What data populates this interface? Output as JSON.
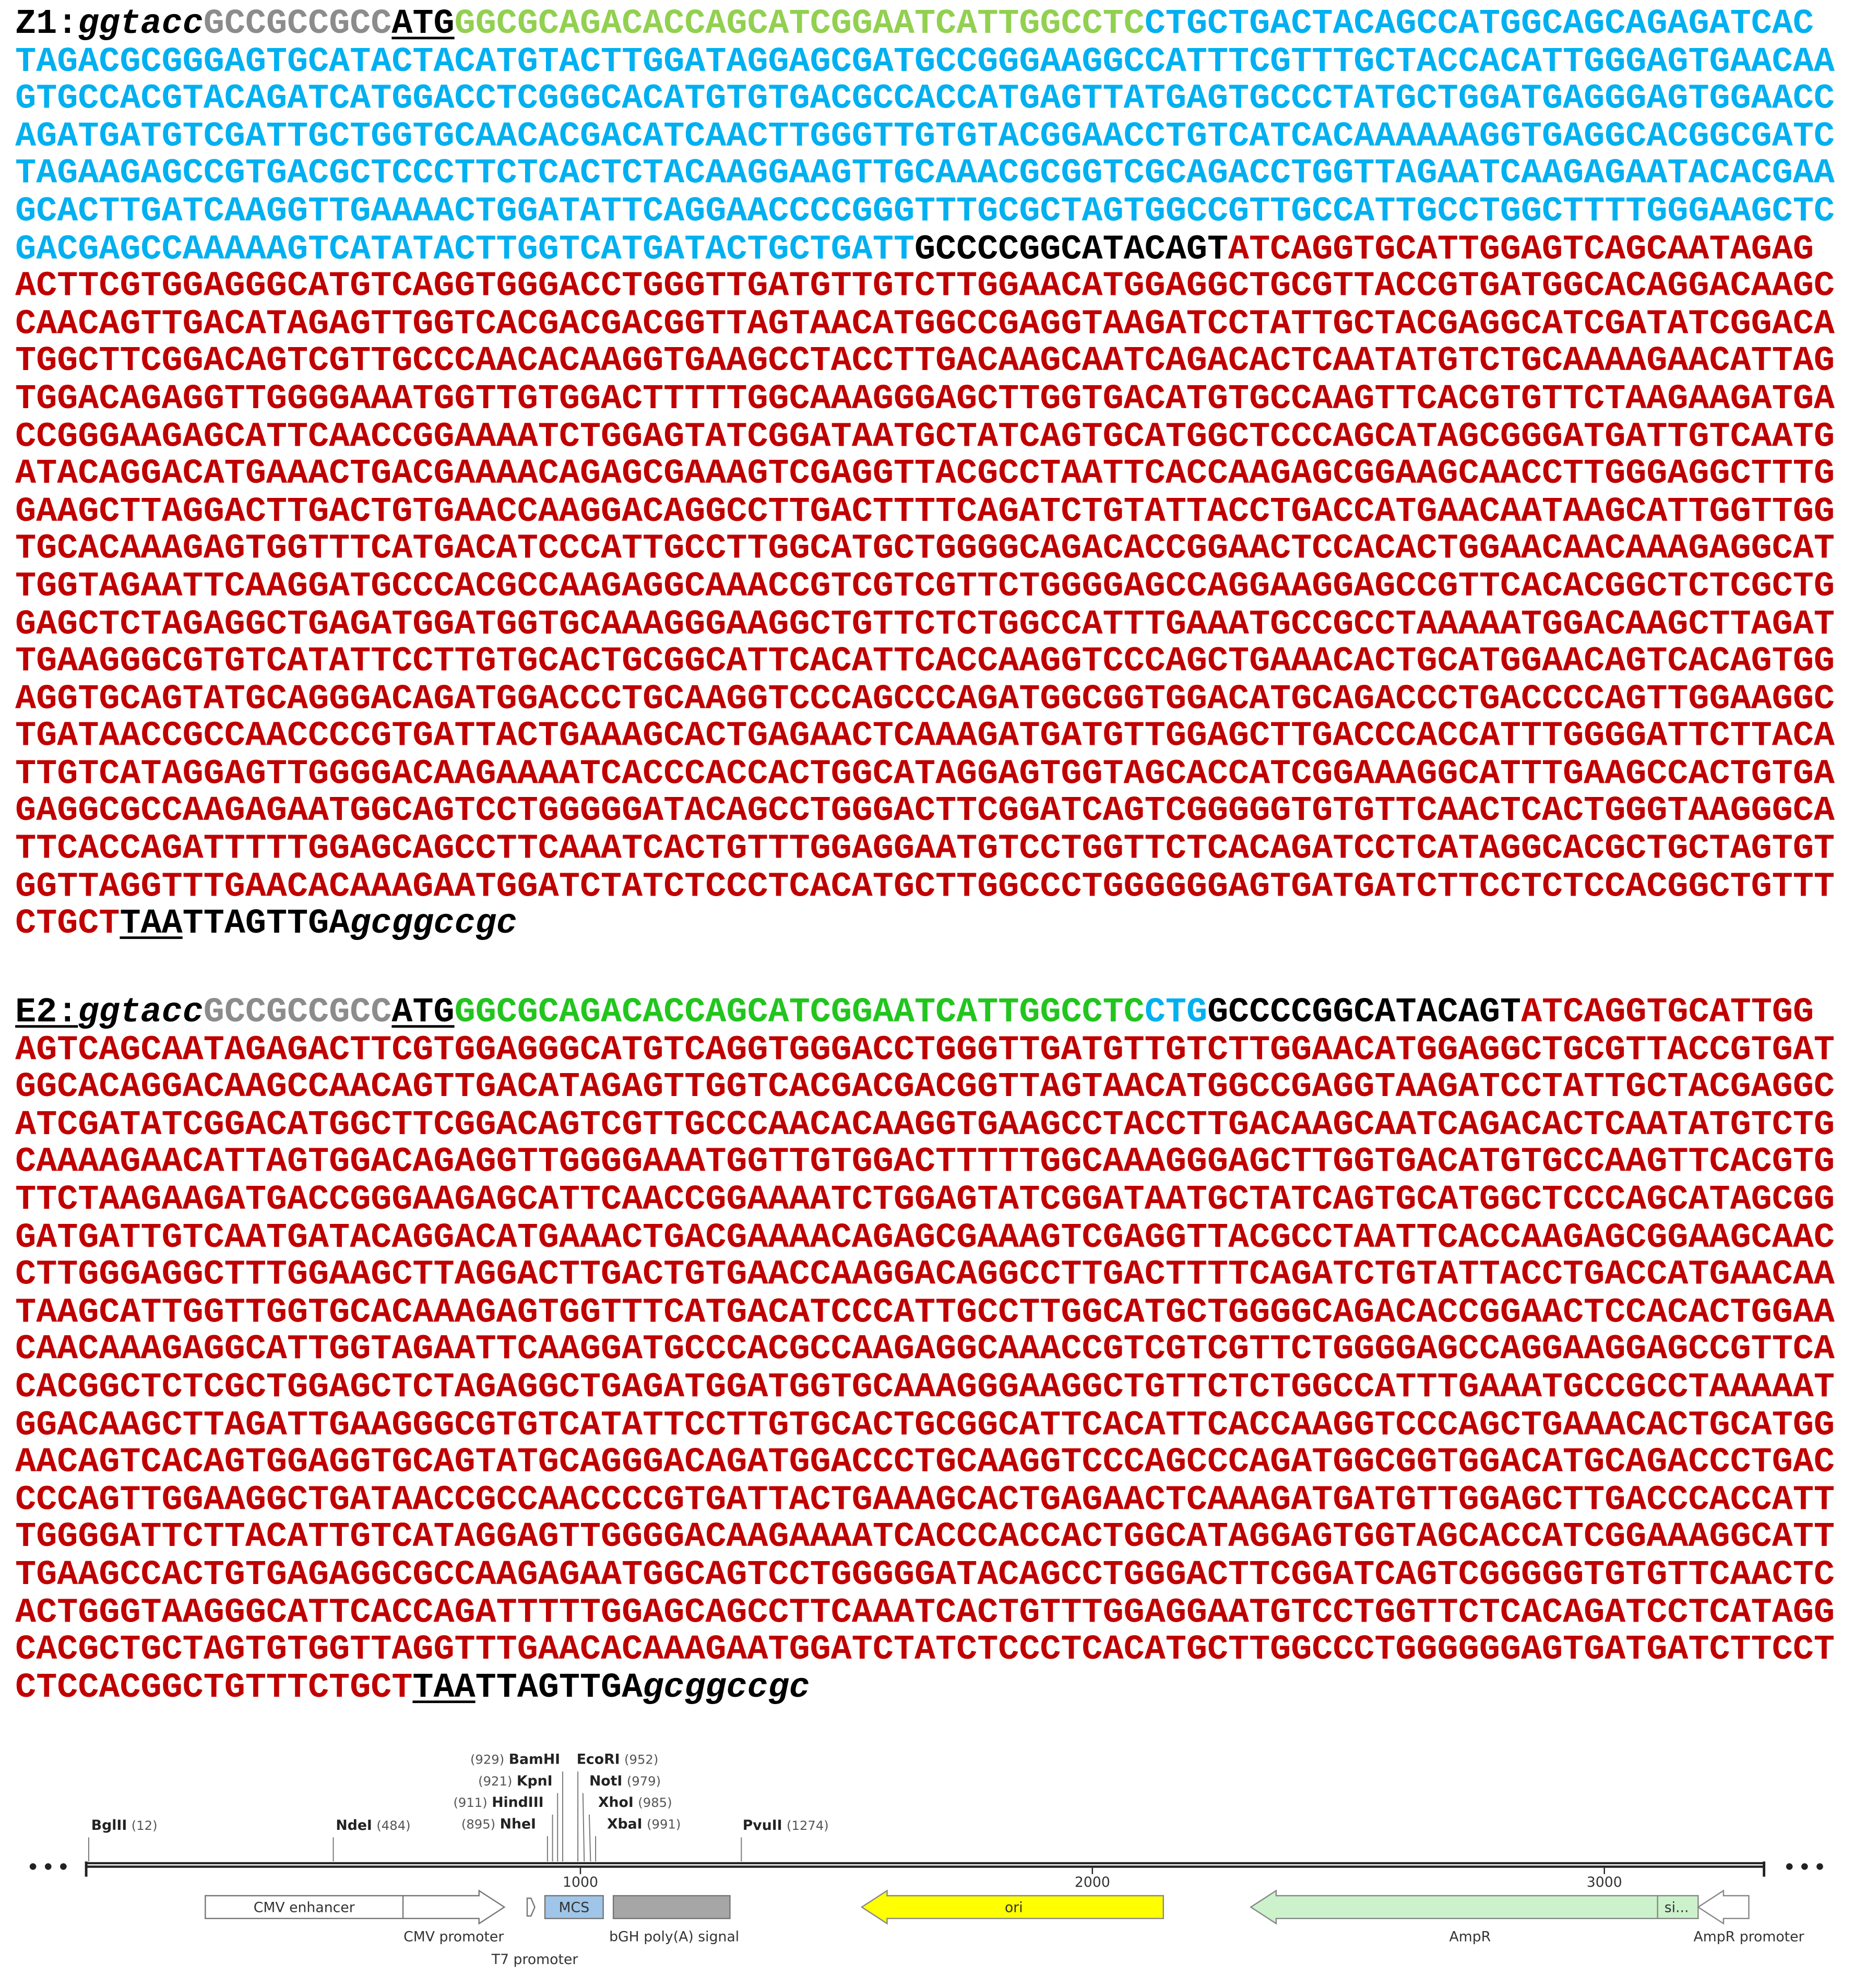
{
  "blocks": [
    {
      "label": "Z1:",
      "label_underline": false,
      "segments": [
        {
          "text": "ggtacc",
          "color": "#000000",
          "italic": true
        },
        {
          "text": "GCCGCCGCC",
          "color": "#8c8c8c"
        },
        {
          "text": "ATG",
          "color": "#000000",
          "underline": true
        },
        {
          "text": "GGCGCAGACACCAGCATCGGAATCATTGGCCTC",
          "color": "#92d050"
        },
        {
          "text": "CTGCTGACTACAGCCATGGCAGCAGAGATCACTAGACGCGGGAGTGCATACTACATGTACTTGGATAGGAGCGATGCCGGGAAGGCCATTTCGTTTGCTACCACATTGGGAGTGAACAAGTGCCACGTACAGATCATGGACCTCGGGCACATGTGTGACGCCACCATGAGTTATGAGTGCCCTATGCTGGATGAGGGAGTGGAACCAGATGATGTCGATTGCTGGTGCAACACGACATCAACTTGGGTTGTGTACGGAACCTGTCATCACAAAAAAGGTGAGGCACGGCGATCTAGAAGAGCCGTGACGCTCCCTTCTCACTCTACAAGGAAGTTGCAAACGCGGTCGCAGACCTGGTTAGAATCAAGAGAATACACGAAGCACTTGATCAAGGTTGAAAACTGGATATTCAGGAACCCCGGGTTTGCGCTAGTGGCCGTTGCCATTGCCTGGCTTTTGGGAAGCTCGACGAGCCAAAAAGTCATATACTTGGTCATGATACTGCTGATT",
          "color": "#00b0f0"
        },
        {
          "text": "GCCCCGGCATACAGT",
          "color": "#000000"
        },
        {
          "text": "ATCAGGTGCATTGGAGTCAGCAATAGAGACTTCGTGGAGGGCATGTCAGGTGGGACCTGGGTTGATGTTGTCTTGGAACATGGAGGCTGCGTTACCGTGATGGCACAGGACAAGCCAACAGTTGACATAGAGTTGGTCACGACGACGGTTAGTAACATGGCCGAGGTAAGATCCTATTGCTACGAGGCATCGATATCGGACATGGCTTCGGACAGTCGTTGCCCAACACAAGGTGAAGCCTACCTTGACAAGCAATCAGACACTCAATATGTCTGCAAAAGAACATTAGTGGACAGAGGTTGGGGAAATGGTTGTGGACTTTTTGGCAAAGGGAGCTTGGTGACATGTGCCAAGTTCACGTGTTCTAAGAAGATGACCGGGAAGAGCATTCAACCGGAAAATCTGGAGTATCGGATAATGCTATCAGTGCATGGCTCCCAGCATAGCGGGATGATTGTCAATGATACAGGACATGAAACTGACGAAAACAGAGCGAAAGTCGAGGTTACGCCTAATTCACCAAGAGCGGAAGCAACCTTGGGAGGCTTTGGAAGCTTAGGACTTGACTGTGAACCAAGGACAGGCCTTGACTTTTCAGATCTGTATTACCTGACCATGAACAATAAGCATTGGTTGGTGCACAAAGAGTGGTTTCATGACATCCCATTGCCTTGGCATGCTGGGGCAGACACCGGAACTCCACACTGGAACAACAAAGAGGCATTGGTAGAATTCAAGGATGCCCACGCCAAGAGGCAAACCGTCGTCGTTCTGGGGAGCCAGGAAGGAGCCGTTCACACGGCTCTCGCTGGAGCTCTAGAGGCTGAGATGGATGGTGCAAAGGGAAGGCTGTTCTCTGGCCATTTGAAATGCCGCCTAAAAATGGACAAGCTTAGATTGAAGGGCGTGTCATATTCCTTGTGCACTGCGGCATTCACATTCACCAAGGTCCCAGCTGAAACACTGCATGGAACAGTCACAGTGGAGGTGCAGTATGCAGGGACAGATGGACCCTGCAAGGTCCCAGCCCAGATGGCGGTGGACATGCAGACCCTGACCCCAGTTGGAAGGCTGATAACCGCCAACCCCGTGATTACTGAAAGCACTGAGAACTCAAAGATGATGTTGGAGCTTGACCCACCATTTGGGGATTCTTACATTGTCATAGGAGTTGGGGACAAGAAAATCACCCACCACTGGCATAGGAGTGGTAGCACCATCGGAAAGGCATTTGAAGCCACTGTGAGAGGCGCCAAGAGAATGGCAGTCCTGGGGGATACAGCCTGGGACTTCGGATCAGTCGGGGGTGTGTTCAACTCACTGGGTAAGGGCATTCACCAGATTTTTGGAGCAGCCTTCAAATCACTGTTTGGAGGAATGTCCTGGTTCTCACAGATCCTCATAGGCACGCTGCTAGTGTGGTTAGGTTTGAACACAAAGAATGGATCTATCTCCCTCACATGCTTGGCCCTGGGGGGAGTGATGATCTTCCTCTCCACGGCTGTTTCTGCT",
          "color": "#c00000"
        },
        {
          "text": "TAA",
          "color": "#000000",
          "underline": true
        },
        {
          "text": "TTAGTTGA",
          "color": "#000000"
        },
        {
          "text": "gcggccgc",
          "color": "#000000",
          "italic": true
        }
      ]
    },
    {
      "label": "E2:",
      "label_underline": true,
      "segments": [
        {
          "text": "ggtacc",
          "color": "#000000",
          "italic": true
        },
        {
          "text": "GCCGCCGCC",
          "color": "#8c8c8c"
        },
        {
          "text": "ATG",
          "color": "#000000",
          "underline": true
        },
        {
          "text": "GGCGCAGACACCAGCATCGGAATCATTGGCCTC",
          "color": "#22c51e"
        },
        {
          "text": "CTG",
          "color": "#00b0f0"
        },
        {
          "text": "GCCCCGGCATACAGT",
          "color": "#000000"
        },
        {
          "text": "ATCAGGTGCATTGGAGTCAGCAATAGAGACTTCGTGGAGGGCATGTCAGGTGGGACCTGGGTTGATGTTGTCTTGGAACATGGAGGCTGCGTTACCGTGATGGCACAGGACAAGCCAACAGTTGACATAGAGTTGGTCACGACGACGGTTAGTAACATGGCCGAGGTAAGATCCTATTGCTACGAGGCATCGATATCGGACATGGCTTCGGACAGTCGTTGCCCAACACAAGGTGAAGCCTACCTTGACAAGCAATCAGACACTCAATATGTCTGCAAAAGAACATTAGTGGACAGAGGTTGGGGAAATGGTTGTGGACTTTTTGGCAAAGGGAGCTTGGTGACATGTGCCAAGTTCACGTGTTCTAAGAAGATGACCGGGAAGAGCATTCAACCGGAAAATCTGGAGTATCGGATAATGCTATCAGTGCATGGCTCCCAGCATAGCGGGATGATTGTCAATGATACAGGACATGAAACTGACGAAAACAGAGCGAAAGTCGAGGTTACGCCTAATTCACCAAGAGCGGAAGCAACCTTGGGAGGCTTTGGAAGCTTAGGACTTGACTGTGAACCAAGGACAGGCCTTGACTTTTCAGATCTGTATTACCTGACCATGAACAATAAGCATTGGTTGGTGCACAAAGAGTGGTTTCATGACATCCCATTGCCTTGGCATGCTGGGGCAGACACCGGAACTCCACACTGGAACAACAAAGAGGCATTGGTAGAATTCAAGGATGCCCACGCCAAGAGGCAAACCGTCGTCGTTCTGGGGAGCCAGGAAGGAGCCGTTCACACGGCTCTCGCTGGAGCTCTAGAGGCTGAGATGGATGGTGCAAAGGGAAGGCTGTTCTCTGGCCATTTGAAATGCCGCCTAAAAATGGACAAGCTTAGATTGAAGGGCGTGTCATATTCCTTGTGCACTGCGGCATTCACATTCACCAAGGTCCCAGCTGAAACACTGCATGGAACAGTCACAGTGGAGGTGCAGTATGCAGGGACAGATGGACCCTGCAAGGTCCCAGCCCAGATGGCGGTGGACATGCAGACCCTGACCCCAGTTGGAAGGCTGATAACCGCCAACCCCGTGATTACTGAAAGCACTGAGAACTCAAAGATGATGTTGGAGCTTGACCCACCATTTGGGGATTCTTACATTGTCATAGGAGTTGGGGACAAGAAAATCACCCACCACTGGCATAGGAGTGGTAGCACCATCGGAAAGGCATTTGAAGCCACTGTGAGAGGCGCCAAGAGAATGGCAGTCCTGGGGGATACAGCCTGGGACTTCGGATCAGTCGGGGGTGTGTTCAACTCACTGGGTAAGGGCATTCACCAGATTTTTGGAGCAGCCTTCAAATCACTGTTTGGAGGAATGTCCTGGTTCTCACAGATCCTCATAGGCACGCTGCTAGTGTGGTTAGGTTTGAACACAAAGAATGGATCTATCTCCCTCACATGCTTGGCCCTGGGGGGAGTGATGATCTTCCTCTCCACGGCTGTTTCTGCT",
          "color": "#c00000"
        },
        {
          "text": "TAA",
          "color": "#000000",
          "underline": true
        },
        {
          "text": "TTAGTTGA",
          "color": "#000000"
        },
        {
          "text": "gcggccgc",
          "color": "#000000",
          "italic": true
        }
      ]
    }
  ],
  "map": {
    "sites": [
      {
        "name": "BglII",
        "position": "(12)"
      },
      {
        "name": "NdeI",
        "position": "(484)"
      },
      {
        "name": "NheI",
        "position": "(895)"
      },
      {
        "name": "HindIII",
        "position": "(911)"
      },
      {
        "name": "KpnI",
        "position": "(921)"
      },
      {
        "name": "BamHI",
        "position": "(929)"
      },
      {
        "name": "EcoRI",
        "position": "(952)"
      },
      {
        "name": "NotI",
        "position": "(979)"
      },
      {
        "name": "XhoI",
        "position": "(985)"
      },
      {
        "name": "XbaI",
        "position": "(991)"
      },
      {
        "name": "PvuII",
        "position": "(1274)"
      }
    ],
    "ruler": [
      1000,
      2000,
      3000
    ],
    "features": [
      "CMV enhancer",
      "CMV promoter",
      "T7 promoter",
      "MCS",
      "bGH poly(A) signal",
      "ori",
      "AmpR",
      "si...",
      "AmpR promoter"
    ]
  }
}
